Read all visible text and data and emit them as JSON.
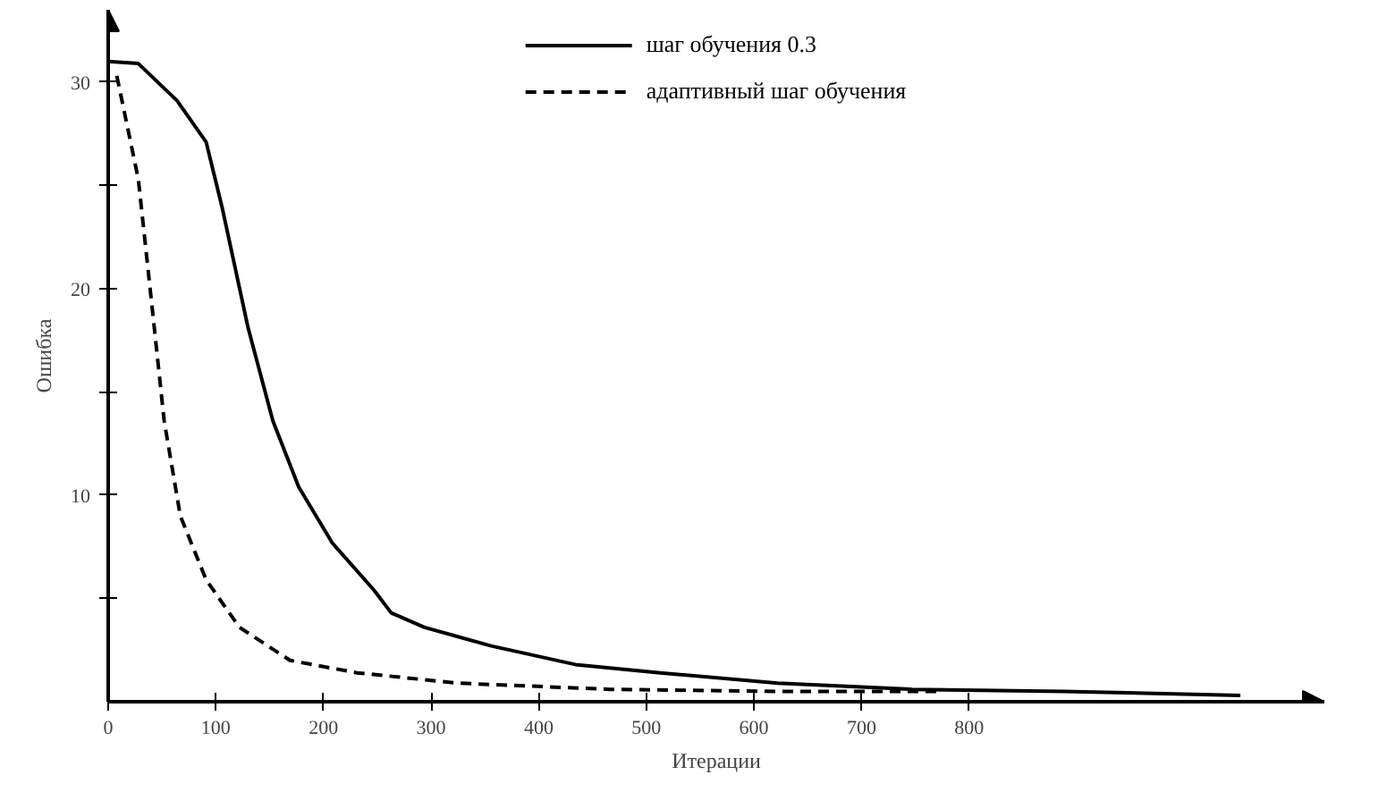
{
  "chart_data": {
    "type": "line",
    "xlabel": "Итерации",
    "ylabel": "Ошибка",
    "xlim": [
      0,
      1130
    ],
    "ylim": [
      0,
      33.5
    ],
    "xticks": [
      0,
      100,
      200,
      300,
      400,
      500,
      600,
      700,
      800
    ],
    "yticks": [
      {
        "value": 5,
        "label": null
      },
      10,
      {
        "value": 15,
        "label": null
      },
      20,
      {
        "value": 25,
        "label": null
      },
      30
    ],
    "grid": false,
    "legend": "top",
    "series": [
      {
        "name": "шаг обучения 0.3",
        "color": "#000000",
        "line_style": "solid",
        "x": [
          0,
          28,
          64,
          91,
          106,
          130,
          153,
          177,
          208,
          247,
          263,
          294,
          356,
          434,
          513,
          622,
          747,
          888,
          1052
        ],
        "values": [
          31.0,
          30.9,
          29.1,
          27.1,
          23.9,
          18.1,
          13.6,
          10.4,
          7.7,
          5.4,
          4.3,
          3.6,
          2.7,
          1.8,
          1.4,
          0.9,
          0.6,
          0.5,
          0.3
        ]
      },
      {
        "name": "адаптивный шаг обучения",
        "color": "#000000",
        "line_style": "dashed",
        "x": [
          8,
          28,
          41,
          52,
          67,
          91,
          122,
          169,
          231,
          325,
          466,
          622,
          770
        ],
        "values": [
          30.3,
          25.3,
          19.0,
          13.6,
          9.0,
          5.9,
          3.6,
          2.0,
          1.4,
          0.9,
          0.6,
          0.5,
          0.5
        ]
      }
    ]
  }
}
